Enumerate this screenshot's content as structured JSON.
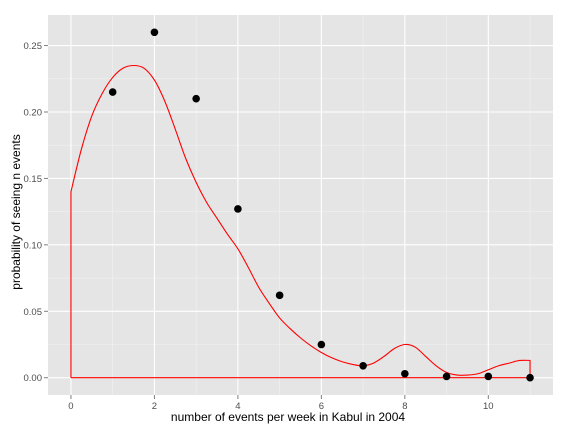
{
  "chart_data": {
    "type": "scatter",
    "title": "",
    "xlabel": "number of events per week in Kabul in 2004",
    "ylabel": "probability of seeing n events",
    "xlim": [
      -0.55,
      11.55
    ],
    "ylim": [
      -0.013,
      0.273
    ],
    "x_ticks": [
      0,
      2,
      4,
      6,
      8,
      10
    ],
    "x_minor_ticks": [
      1,
      3,
      5,
      7,
      9,
      11
    ],
    "y_ticks": [
      0.0,
      0.05,
      0.1,
      0.15,
      0.2,
      0.25
    ],
    "y_tick_labels": [
      "0.00",
      "0.05",
      "0.10",
      "0.15",
      "0.20",
      "0.25"
    ],
    "y_minor_ticks": [
      0.025,
      0.075,
      0.125,
      0.175,
      0.225
    ],
    "grid": true,
    "series": [
      {
        "kind": "points",
        "x": [
          1,
          2,
          3,
          4,
          5,
          6,
          7,
          8,
          9,
          10,
          11
        ],
        "y": [
          0.215,
          0.26,
          0.21,
          0.127,
          0.062,
          0.025,
          0.009,
          0.003,
          0.001,
          0.001,
          0.0
        ]
      },
      {
        "kind": "density-line",
        "x": [
          0,
          0,
          0.25,
          0.5,
          0.75,
          1.0,
          1.25,
          1.5,
          1.75,
          2.0,
          2.25,
          2.5,
          2.75,
          3.0,
          3.25,
          3.5,
          3.75,
          4.0,
          4.25,
          4.5,
          4.75,
          5.0,
          5.25,
          5.5,
          5.75,
          6.0,
          6.25,
          6.5,
          6.75,
          7.0,
          7.25,
          7.5,
          7.75,
          8.0,
          8.25,
          8.5,
          8.75,
          9.0,
          9.25,
          9.5,
          9.75,
          10.0,
          10.25,
          10.5,
          10.75,
          11.0,
          11.0,
          0
        ],
        "y": [
          0.0,
          0.14,
          0.172,
          0.197,
          0.214,
          0.226,
          0.233,
          0.235,
          0.233,
          0.224,
          0.208,
          0.187,
          0.165,
          0.147,
          0.132,
          0.12,
          0.108,
          0.097,
          0.083,
          0.068,
          0.056,
          0.045,
          0.037,
          0.03,
          0.024,
          0.019,
          0.015,
          0.012,
          0.01,
          0.009,
          0.011,
          0.016,
          0.022,
          0.025,
          0.023,
          0.016,
          0.009,
          0.004,
          0.002,
          0.002,
          0.003,
          0.006,
          0.009,
          0.011,
          0.013,
          0.013,
          0.0,
          0.0
        ]
      }
    ],
    "colors": {
      "panel": "#e5e5e5",
      "grid_major": "#ffffff",
      "grid_minor": "#f2f2f2",
      "points": "#000000",
      "line": "#ff0000",
      "tick_text": "#4d4d4d"
    }
  }
}
